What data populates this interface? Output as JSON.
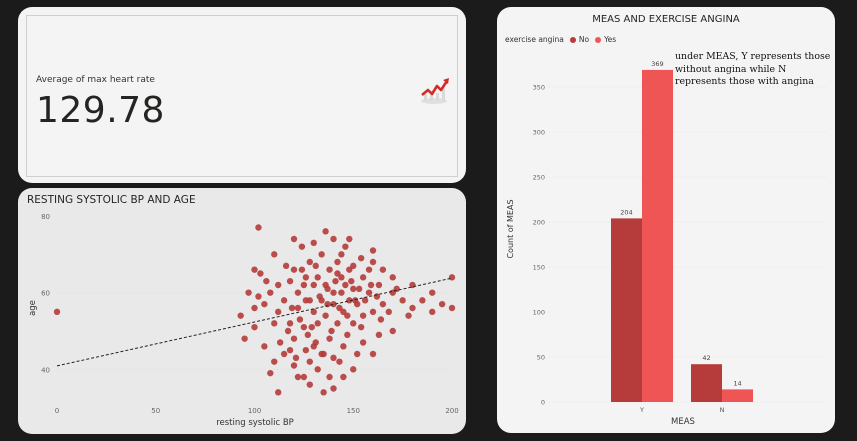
{
  "kpi": {
    "label": "Average of max heart rate",
    "value": "129.78",
    "icon": "trend-chart-icon"
  },
  "colors": {
    "no": "#b63b3b",
    "yes": "#ef5555",
    "scatter": "#b63b3b"
  },
  "chart_data": [
    {
      "type": "scatter",
      "title": "RESTING SYSTOLIC BP AND AGE",
      "xlabel": "resting systolic BP",
      "ylabel": "age",
      "xlim": [
        0,
        200
      ],
      "ylim": [
        32,
        80
      ],
      "xticks": [
        0,
        50,
        100,
        150,
        200
      ],
      "yticks": [
        40,
        60,
        80
      ],
      "trendline": {
        "from": [
          0,
          40.9
        ],
        "to": [
          200,
          63.8
        ]
      },
      "points": [
        [
          0,
          55
        ],
        [
          93,
          54
        ],
        [
          97,
          60
        ],
        [
          100,
          66
        ],
        [
          102,
          77
        ],
        [
          105,
          57
        ],
        [
          108,
          60
        ],
        [
          110,
          70
        ],
        [
          112,
          62
        ],
        [
          115,
          58
        ],
        [
          118,
          63
        ],
        [
          118,
          52
        ],
        [
          120,
          74
        ],
        [
          120,
          48
        ],
        [
          122,
          60
        ],
        [
          122,
          56
        ],
        [
          124,
          66
        ],
        [
          125,
          51
        ],
        [
          125,
          62
        ],
        [
          126,
          45
        ],
        [
          128,
          58
        ],
        [
          128,
          68
        ],
        [
          130,
          55
        ],
        [
          130,
          62
        ],
        [
          130,
          46
        ],
        [
          132,
          64
        ],
        [
          132,
          52
        ],
        [
          134,
          70
        ],
        [
          134,
          58
        ],
        [
          135,
          44
        ],
        [
          136,
          62
        ],
        [
          136,
          54
        ],
        [
          138,
          66
        ],
        [
          138,
          48
        ],
        [
          140,
          60
        ],
        [
          140,
          57
        ],
        [
          140,
          43
        ],
        [
          142,
          65
        ],
        [
          142,
          52
        ],
        [
          144,
          70
        ],
        [
          144,
          60
        ],
        [
          145,
          55
        ],
        [
          145,
          46
        ],
        [
          146,
          62
        ],
        [
          148,
          58
        ],
        [
          148,
          74
        ],
        [
          150,
          61
        ],
        [
          150,
          52
        ],
        [
          150,
          67
        ],
        [
          152,
          57
        ],
        [
          152,
          44
        ],
        [
          155,
          64
        ],
        [
          155,
          54
        ],
        [
          158,
          60
        ],
        [
          160,
          55
        ],
        [
          160,
          68
        ],
        [
          165,
          57
        ],
        [
          170,
          60
        ],
        [
          170,
          50
        ],
        [
          175,
          58
        ],
        [
          178,
          54
        ],
        [
          180,
          56
        ],
        [
          190,
          55
        ],
        [
          190,
          60
        ],
        [
          200,
          64
        ],
        [
          200,
          56
        ],
        [
          120,
          41
        ],
        [
          125,
          38
        ],
        [
          128,
          36
        ],
        [
          115,
          44
        ],
        [
          105,
          46
        ],
        [
          108,
          39
        ],
        [
          132,
          40
        ],
        [
          138,
          38
        ],
        [
          110,
          52
        ],
        [
          100,
          56
        ],
        [
          100,
          51
        ],
        [
          95,
          48
        ],
        [
          112,
          34
        ],
        [
          140,
          35
        ],
        [
          145,
          38
        ],
        [
          150,
          40
        ],
        [
          135,
          34
        ],
        [
          128,
          42
        ],
        [
          118,
          45
        ],
        [
          122,
          38
        ],
        [
          155,
          47
        ],
        [
          160,
          44
        ],
        [
          116,
          67
        ],
        [
          124,
          72
        ],
        [
          130,
          73
        ],
        [
          136,
          76
        ],
        [
          146,
          72
        ],
        [
          140,
          74
        ],
        [
          120,
          66
        ],
        [
          106,
          63
        ],
        [
          103,
          65
        ],
        [
          112,
          55
        ],
        [
          126,
          64
        ],
        [
          133,
          59
        ],
        [
          137,
          57
        ],
        [
          141,
          63
        ],
        [
          143,
          56
        ],
        [
          147,
          54
        ],
        [
          149,
          63
        ],
        [
          151,
          58
        ],
        [
          153,
          61
        ],
        [
          156,
          58
        ],
        [
          159,
          62
        ],
        [
          162,
          59
        ],
        [
          164,
          53
        ],
        [
          168,
          55
        ],
        [
          172,
          61
        ],
        [
          180,
          62
        ],
        [
          185,
          58
        ],
        [
          195,
          57
        ],
        [
          117,
          50
        ],
        [
          123,
          53
        ],
        [
          127,
          49
        ],
        [
          131,
          47
        ],
        [
          139,
          50
        ],
        [
          147,
          49
        ],
        [
          154,
          51
        ],
        [
          163,
          49
        ],
        [
          143,
          42
        ],
        [
          134,
          44
        ],
        [
          121,
          43
        ],
        [
          113,
          47
        ],
        [
          119,
          56
        ],
        [
          129,
          51
        ],
        [
          137,
          61
        ],
        [
          142,
          68
        ],
        [
          148,
          66
        ],
        [
          154,
          69
        ],
        [
          158,
          66
        ],
        [
          144,
          64
        ],
        [
          126,
          58
        ],
        [
          131,
          67
        ],
        [
          110,
          42
        ],
        [
          160,
          71
        ],
        [
          163,
          62
        ],
        [
          170,
          64
        ],
        [
          165,
          66
        ],
        [
          102,
          59
        ]
      ]
    },
    {
      "type": "bar",
      "title": "MEAS AND EXERCISE ANGINA",
      "legend_title": "exercise angina",
      "xlabel": "MEAS",
      "ylabel": "Count of MEAS",
      "categories": [
        "Y",
        "N"
      ],
      "ylim": [
        0,
        390
      ],
      "yticks": [
        0,
        50,
        100,
        150,
        200,
        250,
        300,
        350
      ],
      "series": [
        {
          "name": "No",
          "values": [
            204,
            42
          ]
        },
        {
          "name": "Yes",
          "values": [
            369,
            14
          ]
        }
      ]
    }
  ],
  "annotation": "under MEAS, Y represents those without angina while N represents those with angina"
}
